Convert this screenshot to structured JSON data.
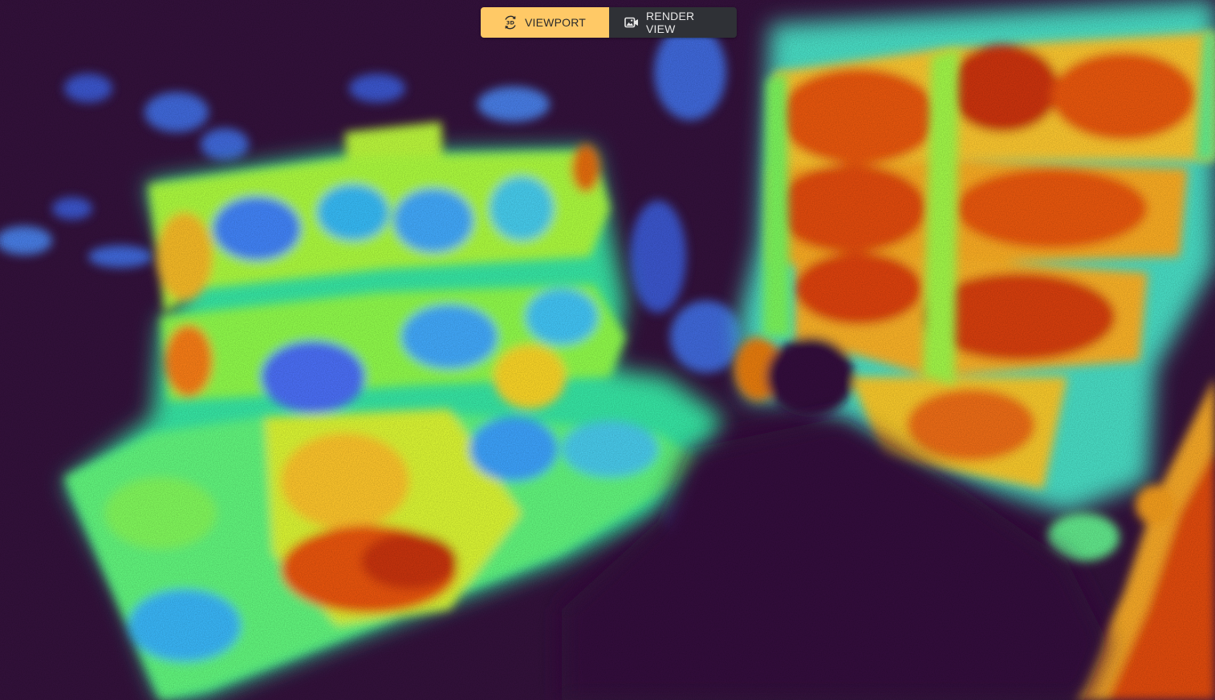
{
  "viewer": {
    "background_color": "#32113a",
    "colormap": "turbo"
  },
  "view_toggle": {
    "viewport": {
      "label": "VIEWPORT",
      "icon": "3d-rotate-icon",
      "active": true,
      "color": "#ffc966"
    },
    "render_view": {
      "label": "RENDER VIEW",
      "icon": "camera-image-icon",
      "active": false,
      "color": "#2f3136"
    }
  }
}
